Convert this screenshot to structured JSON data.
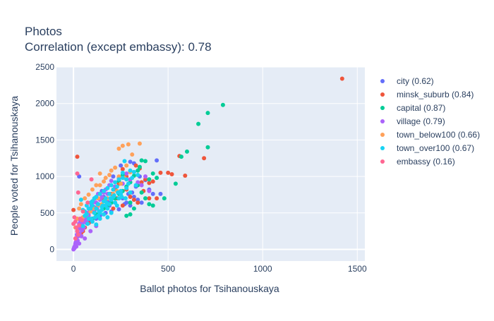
{
  "chart_data": {
    "type": "scatter",
    "title": "Photos",
    "subtitle": "Correlation (except embassy): 0.78",
    "xlabel": "Ballot photos for Tsihanouskaya",
    "ylabel": "People voted for Tsihanouskaya",
    "xlim": [
      -90,
      1540
    ],
    "ylim": [
      -160,
      2500
    ],
    "xticks": [
      0,
      500,
      1000,
      1500
    ],
    "yticks": [
      0,
      500,
      1000,
      1500,
      2000,
      2500
    ],
    "plot_background": "#e5ecf6",
    "grid": true,
    "legend_position": "right",
    "series": [
      {
        "name": "city (0.62)",
        "color": "#636efa",
        "points": [
          [
            30,
            1000
          ],
          [
            210,
            1000
          ],
          [
            250,
            1150
          ],
          [
            300,
            1200
          ],
          [
            320,
            1180
          ],
          [
            350,
            1000
          ],
          [
            380,
            950
          ],
          [
            400,
            820
          ],
          [
            420,
            760
          ],
          [
            440,
            1220
          ],
          [
            460,
            760
          ],
          [
            210,
            750
          ],
          [
            230,
            860
          ],
          [
            180,
            650
          ],
          [
            160,
            720
          ],
          [
            150,
            800
          ],
          [
            130,
            620
          ],
          [
            100,
            560
          ],
          [
            80,
            470
          ],
          [
            60,
            420
          ],
          [
            280,
            640
          ],
          [
            300,
            600
          ],
          [
            320,
            720
          ],
          [
            340,
            680
          ],
          [
            360,
            640
          ],
          [
            240,
            550
          ],
          [
            200,
            520
          ],
          [
            170,
            500
          ],
          [
            140,
            460
          ],
          [
            120,
            420
          ],
          [
            260,
            700
          ],
          [
            220,
            640
          ],
          [
            190,
            600
          ],
          [
            110,
            520
          ],
          [
            90,
            380
          ],
          [
            70,
            360
          ],
          [
            330,
            860
          ],
          [
            310,
            780
          ],
          [
            290,
            760
          ],
          [
            270,
            620
          ]
        ]
      },
      {
        "name": "minsk_suburb (0.84)",
        "color": "#ef553b",
        "points": [
          [
            20,
            1270
          ],
          [
            0,
            540
          ],
          [
            1420,
            2340
          ],
          [
            690,
            1250
          ],
          [
            560,
            1280
          ],
          [
            590,
            1010
          ],
          [
            500,
            1050
          ],
          [
            520,
            1030
          ],
          [
            460,
            1050
          ],
          [
            440,
            700
          ],
          [
            420,
            930
          ],
          [
            400,
            700
          ],
          [
            370,
            800
          ],
          [
            350,
            1110
          ],
          [
            330,
            1150
          ],
          [
            300,
            1060
          ],
          [
            280,
            1000
          ],
          [
            260,
            1100
          ],
          [
            240,
            900
          ],
          [
            220,
            820
          ],
          [
            200,
            760
          ],
          [
            180,
            600
          ],
          [
            160,
            700
          ],
          [
            140,
            520
          ],
          [
            120,
            480
          ],
          [
            100,
            420
          ],
          [
            80,
            360
          ],
          [
            60,
            300
          ],
          [
            50,
            250
          ],
          [
            40,
            220
          ],
          [
            280,
            820
          ],
          [
            320,
            680
          ],
          [
            340,
            640
          ],
          [
            300,
            720
          ],
          [
            260,
            600
          ],
          [
            400,
            910
          ],
          [
            380,
            960
          ],
          [
            360,
            920
          ],
          [
            210,
            560
          ],
          [
            230,
            700
          ]
        ]
      },
      {
        "name": "capital (0.87)",
        "color": "#00cc96",
        "points": [
          [
            790,
            1980
          ],
          [
            710,
            1870
          ],
          [
            660,
            1720
          ],
          [
            710,
            1400
          ],
          [
            600,
            1340
          ],
          [
            570,
            1270
          ],
          [
            540,
            900
          ],
          [
            480,
            700
          ],
          [
            440,
            980
          ],
          [
            420,
            1040
          ],
          [
            400,
            960
          ],
          [
            380,
            1210
          ],
          [
            360,
            1220
          ],
          [
            350,
            1130
          ],
          [
            340,
            1080
          ],
          [
            320,
            1010
          ],
          [
            300,
            920
          ],
          [
            280,
            860
          ],
          [
            260,
            800
          ],
          [
            240,
            760
          ],
          [
            220,
            700
          ],
          [
            200,
            640
          ],
          [
            180,
            600
          ],
          [
            160,
            560
          ],
          [
            140,
            520
          ],
          [
            120,
            480
          ],
          [
            100,
            420
          ],
          [
            300,
            480
          ],
          [
            280,
            460
          ],
          [
            400,
            620
          ],
          [
            380,
            700
          ],
          [
            360,
            780
          ],
          [
            260,
            1020
          ],
          [
            240,
            940
          ],
          [
            300,
            640
          ],
          [
            320,
            560
          ],
          [
            420,
            600
          ],
          [
            340,
            880
          ]
        ]
      },
      {
        "name": "village (0.79)",
        "color": "#ab63fa",
        "points": [
          [
            0,
            0
          ],
          [
            2,
            10
          ],
          [
            4,
            30
          ],
          [
            6,
            20
          ],
          [
            8,
            50
          ],
          [
            10,
            80
          ],
          [
            12,
            100
          ],
          [
            15,
            150
          ],
          [
            18,
            200
          ],
          [
            20,
            250
          ],
          [
            22,
            120
          ],
          [
            25,
            180
          ],
          [
            28,
            300
          ],
          [
            30,
            350
          ],
          [
            32,
            220
          ],
          [
            35,
            400
          ],
          [
            38,
            280
          ],
          [
            40,
            320
          ],
          [
            42,
            180
          ],
          [
            45,
            260
          ],
          [
            48,
            360
          ],
          [
            50,
            420
          ],
          [
            55,
            300
          ],
          [
            60,
            380
          ],
          [
            65,
            450
          ],
          [
            70,
            400
          ],
          [
            75,
            500
          ],
          [
            80,
            460
          ],
          [
            85,
            520
          ],
          [
            90,
            560
          ],
          [
            95,
            600
          ],
          [
            100,
            520
          ],
          [
            105,
            650
          ],
          [
            110,
            580
          ],
          [
            115,
            700
          ],
          [
            120,
            640
          ],
          [
            125,
            560
          ],
          [
            130,
            760
          ],
          [
            140,
            680
          ],
          [
            150,
            720
          ],
          [
            160,
            780
          ],
          [
            170,
            820
          ],
          [
            180,
            760
          ],
          [
            190,
            880
          ],
          [
            200,
            940
          ],
          [
            220,
            860
          ],
          [
            240,
            980
          ],
          [
            260,
            900
          ],
          [
            280,
            1040
          ],
          [
            300,
            960
          ],
          [
            320,
            1060
          ],
          [
            340,
            920
          ],
          [
            360,
            880
          ],
          [
            380,
            1000
          ],
          [
            400,
            800
          ],
          [
            120,
            320
          ],
          [
            90,
            250
          ],
          [
            60,
            150
          ],
          [
            30,
            80
          ],
          [
            15,
            40
          ],
          [
            5,
            15
          ],
          [
            10,
            60
          ]
        ]
      },
      {
        "name": "town_below100 (0.66)",
        "color": "#ffa15a",
        "points": [
          [
            350,
            1450
          ],
          [
            290,
            1440
          ],
          [
            260,
            1420
          ],
          [
            240,
            1380
          ],
          [
            310,
            1300
          ],
          [
            280,
            1150
          ],
          [
            220,
            1120
          ],
          [
            200,
            1080
          ],
          [
            190,
            1020
          ],
          [
            170,
            980
          ],
          [
            140,
            1040
          ],
          [
            120,
            880
          ],
          [
            100,
            820
          ],
          [
            80,
            750
          ],
          [
            60,
            700
          ],
          [
            40,
            620
          ],
          [
            30,
            560
          ],
          [
            20,
            420
          ],
          [
            10,
            300
          ],
          [
            250,
            900
          ],
          [
            230,
            800
          ],
          [
            210,
            760
          ],
          [
            180,
            700
          ],
          [
            160,
            660
          ],
          [
            150,
            620
          ],
          [
            130,
            600
          ],
          [
            110,
            560
          ],
          [
            90,
            520
          ],
          [
            70,
            480
          ],
          [
            50,
            440
          ],
          [
            300,
            1060
          ],
          [
            270,
            980
          ],
          [
            160,
            930
          ],
          [
            140,
            880
          ],
          [
            130,
            700
          ],
          [
            240,
            1000
          ]
        ]
      },
      {
        "name": "town_over100 (0.67)",
        "color": "#19d3f3",
        "points": [
          [
            40,
            680
          ],
          [
            50,
            540
          ],
          [
            60,
            520
          ],
          [
            70,
            480
          ],
          [
            80,
            560
          ],
          [
            90,
            640
          ],
          [
            100,
            600
          ],
          [
            110,
            700
          ],
          [
            120,
            560
          ],
          [
            130,
            620
          ],
          [
            140,
            500
          ],
          [
            150,
            540
          ],
          [
            160,
            660
          ],
          [
            170,
            600
          ],
          [
            180,
            560
          ],
          [
            190,
            620
          ],
          [
            200,
            680
          ],
          [
            210,
            720
          ],
          [
            220,
            640
          ],
          [
            230,
            600
          ],
          [
            240,
            700
          ],
          [
            250,
            760
          ],
          [
            260,
            1050
          ],
          [
            270,
            1210
          ],
          [
            280,
            960
          ],
          [
            290,
            900
          ],
          [
            300,
            1080
          ],
          [
            310,
            980
          ],
          [
            320,
            1060
          ],
          [
            330,
            880
          ],
          [
            340,
            1020
          ],
          [
            60,
            460
          ],
          [
            80,
            420
          ],
          [
            100,
            380
          ],
          [
            120,
            340
          ],
          [
            140,
            420
          ],
          [
            160,
            480
          ],
          [
            180,
            440
          ],
          [
            200,
            500
          ],
          [
            90,
            560
          ],
          [
            110,
            500
          ],
          [
            130,
            460
          ],
          [
            150,
            580
          ],
          [
            170,
            700
          ],
          [
            190,
            760
          ],
          [
            210,
            820
          ],
          [
            230,
            860
          ],
          [
            250,
            800
          ],
          [
            70,
            600
          ],
          [
            100,
            660
          ],
          [
            120,
            720
          ],
          [
            140,
            760
          ],
          [
            160,
            800
          ],
          [
            180,
            840
          ],
          [
            200,
            880
          ],
          [
            220,
            920
          ],
          [
            240,
            960
          ],
          [
            260,
            980
          ],
          [
            280,
            840
          ],
          [
            300,
            780
          ],
          [
            50,
            320
          ],
          [
            75,
            350
          ],
          [
            95,
            420
          ],
          [
            115,
            440
          ],
          [
            135,
            520
          ],
          [
            155,
            600
          ],
          [
            175,
            640
          ],
          [
            195,
            700
          ],
          [
            215,
            740
          ],
          [
            235,
            780
          ],
          [
            255,
            720
          ],
          [
            275,
            700
          ]
        ]
      },
      {
        "name": "embassy (0.16)",
        "color": "#ff6692",
        "points": [
          [
            20,
            1040
          ],
          [
            25,
            780
          ],
          [
            5,
            440
          ],
          [
            10,
            380
          ],
          [
            15,
            300
          ],
          [
            20,
            250
          ],
          [
            25,
            200
          ],
          [
            10,
            150
          ],
          [
            35,
            420
          ],
          [
            50,
            520
          ],
          [
            75,
            640
          ],
          [
            95,
            960
          ],
          [
            0,
            350
          ],
          [
            30,
            330
          ],
          [
            45,
            400
          ]
        ]
      }
    ]
  }
}
